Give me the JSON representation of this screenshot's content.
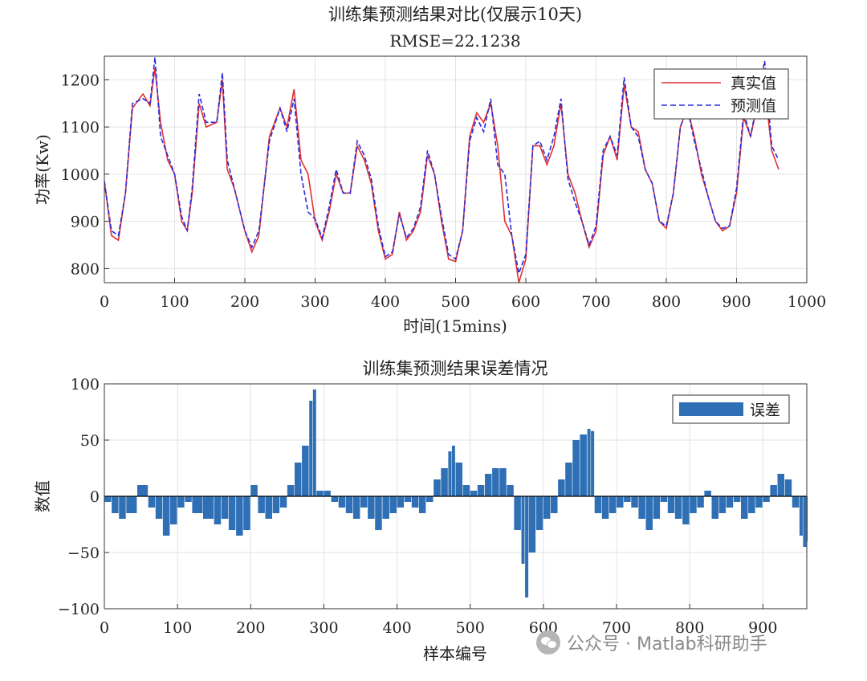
{
  "watermark": {
    "text": "公众号 · Matlab科研助手"
  },
  "chart_data": [
    {
      "type": "line",
      "title": "训练集预测结果对比(仅展示10天)",
      "subtitle": "RMSE=22.1238",
      "xlabel": "时间(15mins)",
      "ylabel": "功率(Kw)",
      "xlim": [
        0,
        1000
      ],
      "ylim": [
        770,
        1250
      ],
      "xticks": [
        0,
        100,
        200,
        300,
        400,
        500,
        600,
        700,
        800,
        900,
        1000
      ],
      "yticks": [
        800,
        900,
        1000,
        1100,
        1200
      ],
      "grid": true,
      "legend_position": "top-right",
      "x": [
        0,
        10,
        20,
        30,
        40,
        55,
        65,
        72,
        80,
        90,
        100,
        110,
        118,
        125,
        135,
        145,
        160,
        168,
        175,
        185,
        200,
        210,
        220,
        235,
        250,
        260,
        270,
        280,
        290,
        300,
        310,
        320,
        330,
        340,
        350,
        360,
        370,
        380,
        390,
        400,
        410,
        420,
        430,
        440,
        450,
        460,
        470,
        480,
        490,
        500,
        510,
        520,
        530,
        540,
        550,
        560,
        570,
        580,
        590,
        600,
        610,
        620,
        630,
        640,
        650,
        660,
        670,
        680,
        690,
        700,
        710,
        720,
        730,
        740,
        750,
        760,
        770,
        780,
        790,
        800,
        810,
        820,
        830,
        840,
        850,
        860,
        870,
        880,
        890,
        900,
        910,
        920,
        930,
        940,
        950,
        960
      ],
      "series": [
        {
          "name": "真实值",
          "color": "#e03030",
          "dash": "solid",
          "values": [
            985,
            870,
            860,
            960,
            1140,
            1170,
            1145,
            1225,
            1110,
            1030,
            1000,
            900,
            880,
            960,
            1150,
            1100,
            1110,
            1200,
            1010,
            970,
            880,
            835,
            870,
            1080,
            1140,
            1100,
            1180,
            1030,
            1000,
            900,
            860,
            920,
            1000,
            960,
            960,
            1060,
            1030,
            980,
            880,
            820,
            830,
            920,
            860,
            880,
            920,
            1040,
            1000,
            900,
            820,
            815,
            880,
            1080,
            1130,
            1110,
            1150,
            1060,
            900,
            870,
            770,
            820,
            1060,
            1060,
            1020,
            1060,
            1150,
            1000,
            960,
            900,
            845,
            880,
            1040,
            1080,
            1030,
            1190,
            1100,
            1090,
            1010,
            980,
            900,
            885,
            960,
            1100,
            1140,
            1080,
            1000,
            950,
            900,
            880,
            890,
            960,
            1120,
            1080,
            1150,
            1190,
            1050,
            1010
          ]
        },
        {
          "name": "预测值",
          "color": "#2a2ae0",
          "dash": "dashed",
          "values": [
            985,
            880,
            870,
            960,
            1150,
            1160,
            1150,
            1248,
            1080,
            1040,
            1000,
            910,
            880,
            970,
            1170,
            1110,
            1110,
            1215,
            1030,
            970,
            880,
            845,
            880,
            1070,
            1140,
            1090,
            1160,
            1000,
            920,
            905,
            865,
            930,
            1010,
            960,
            960,
            1070,
            1040,
            990,
            890,
            825,
            835,
            915,
            865,
            885,
            930,
            1050,
            1000,
            910,
            830,
            820,
            880,
            1070,
            1120,
            1090,
            1160,
            1020,
            1000,
            870,
            790,
            830,
            1060,
            1070,
            1030,
            1080,
            1160,
            990,
            940,
            900,
            850,
            890,
            1050,
            1080,
            1040,
            1205,
            1100,
            1080,
            1010,
            980,
            900,
            890,
            960,
            1100,
            1140,
            1070,
            1010,
            950,
            900,
            885,
            890,
            970,
            1130,
            1080,
            1160,
            1240,
            1060,
            1030
          ]
        }
      ]
    },
    {
      "type": "bar",
      "title": "训练集预测结果误差情况",
      "xlabel": "样本编号",
      "ylabel": "数值",
      "xlim": [
        0,
        960
      ],
      "ylim": [
        -100,
        100
      ],
      "xticks": [
        0,
        100,
        200,
        300,
        400,
        500,
        600,
        700,
        800,
        900
      ],
      "yticks": [
        -100,
        -50,
        0,
        50,
        100
      ],
      "grid": true,
      "legend_position": "top-right",
      "series": [
        {
          "name": "误差",
          "color": "#2e6fb5",
          "x": [
            0,
            10,
            20,
            30,
            45,
            60,
            70,
            80,
            90,
            100,
            110,
            120,
            135,
            150,
            160,
            170,
            180,
            190,
            200,
            210,
            220,
            230,
            240,
            250,
            260,
            270,
            280,
            285,
            290,
            300,
            310,
            320,
            330,
            340,
            350,
            360,
            370,
            380,
            390,
            400,
            410,
            420,
            430,
            440,
            450,
            460,
            470,
            475,
            480,
            490,
            500,
            510,
            520,
            530,
            540,
            550,
            560,
            570,
            575,
            580,
            590,
            600,
            610,
            620,
            630,
            640,
            650,
            660,
            665,
            670,
            680,
            690,
            700,
            710,
            720,
            730,
            740,
            750,
            760,
            770,
            780,
            790,
            800,
            810,
            820,
            830,
            840,
            850,
            860,
            870,
            880,
            890,
            900,
            910,
            920,
            930,
            940,
            950,
            955,
            960
          ],
          "values": [
            -5,
            -15,
            -20,
            -15,
            10,
            -10,
            -20,
            -35,
            -25,
            -10,
            -5,
            -15,
            -20,
            -25,
            -20,
            -30,
            -35,
            -30,
            10,
            -15,
            -20,
            -15,
            -10,
            10,
            30,
            45,
            85,
            95,
            5,
            5,
            -5,
            -10,
            -15,
            -20,
            -10,
            -20,
            -30,
            -20,
            -15,
            -10,
            -5,
            -10,
            -15,
            -5,
            15,
            25,
            40,
            45,
            30,
            10,
            5,
            10,
            20,
            25,
            25,
            10,
            -30,
            -60,
            -90,
            -50,
            -30,
            -20,
            -15,
            15,
            30,
            50,
            55,
            60,
            58,
            -15,
            -20,
            -15,
            -10,
            -5,
            -10,
            -20,
            -30,
            -20,
            -5,
            -15,
            -20,
            -25,
            -15,
            -10,
            5,
            -20,
            -15,
            -10,
            -5,
            -20,
            -15,
            -10,
            -5,
            10,
            20,
            15,
            -10,
            -35,
            -45,
            -40
          ]
        }
      ]
    }
  ]
}
